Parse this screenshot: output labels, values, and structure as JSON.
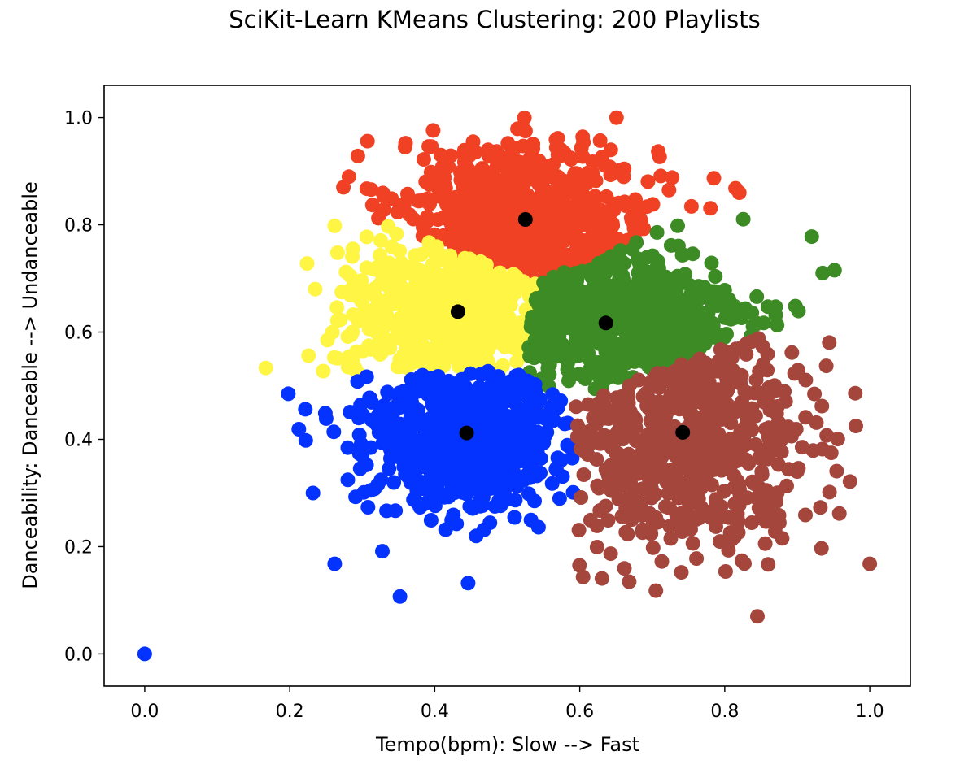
{
  "chart_data": {
    "type": "scatter",
    "title": "SciKit-Learn KMeans Clustering: 200 Playlists",
    "xlabel": "Tempo(bpm): Slow --> Fast",
    "ylabel": "Danceability: Danceable --> Undanceable",
    "xlim": [
      -0.056,
      1.056
    ],
    "ylim": [
      -0.06,
      1.06
    ],
    "xticks": [
      "0.0",
      "0.2",
      "0.4",
      "0.6",
      "0.8",
      "1.0"
    ],
    "yticks": [
      "0.0",
      "0.2",
      "0.4",
      "0.6",
      "0.8",
      "1.0"
    ],
    "grid": false,
    "legend": "none",
    "clusters": [
      {
        "color": "#f04124",
        "center": [
          0.525,
          0.81
        ],
        "spread": [
          0.09,
          0.075
        ]
      },
      {
        "color": "#fef545",
        "center": [
          0.432,
          0.638
        ],
        "spread": [
          0.075,
          0.065
        ]
      },
      {
        "color": "#3c8b24",
        "center": [
          0.636,
          0.617
        ],
        "spread": [
          0.1,
          0.07
        ]
      },
      {
        "color": "#0433ff",
        "center": [
          0.444,
          0.412
        ],
        "spread": [
          0.07,
          0.075
        ]
      },
      {
        "color": "#a5463d",
        "center": [
          0.742,
          0.413
        ],
        "spread": [
          0.09,
          0.1
        ]
      }
    ],
    "outliers": [
      {
        "x": 0.0,
        "y": 0.0,
        "color": "#0433ff"
      },
      {
        "x": 0.198,
        "y": 0.485,
        "color": "#0433ff"
      },
      {
        "x": 0.222,
        "y": 0.398,
        "color": "#0433ff"
      },
      {
        "x": 0.232,
        "y": 0.3,
        "color": "#0433ff"
      },
      {
        "x": 0.262,
        "y": 0.168,
        "color": "#0433ff"
      },
      {
        "x": 0.167,
        "y": 0.533,
        "color": "#fef545"
      },
      {
        "x": 0.226,
        "y": 0.556,
        "color": "#fef545"
      },
      {
        "x": 0.224,
        "y": 0.728,
        "color": "#fef545"
      },
      {
        "x": 0.262,
        "y": 0.798,
        "color": "#fef545"
      },
      {
        "x": 0.274,
        "y": 0.87,
        "color": "#f04124"
      },
      {
        "x": 0.82,
        "y": 0.86,
        "color": "#f04124"
      },
      {
        "x": 0.92,
        "y": 0.778,
        "color": "#3c8b24"
      },
      {
        "x": 0.935,
        "y": 0.71,
        "color": "#3c8b24"
      },
      {
        "x": 1.0,
        "y": 0.168,
        "color": "#a5463d"
      },
      {
        "x": 0.98,
        "y": 0.486,
        "color": "#a5463d"
      },
      {
        "x": 0.845,
        "y": 0.07,
        "color": "#a5463d"
      },
      {
        "x": 0.705,
        "y": 0.118,
        "color": "#a5463d"
      },
      {
        "x": 0.352,
        "y": 0.107,
        "color": "#0433ff"
      },
      {
        "x": 0.446,
        "y": 0.132,
        "color": "#0433ff"
      }
    ],
    "centroids": [
      {
        "x": 0.525,
        "y": 0.81,
        "color": "#000000"
      },
      {
        "x": 0.432,
        "y": 0.638,
        "color": "#000000"
      },
      {
        "x": 0.636,
        "y": 0.617,
        "color": "#000000"
      },
      {
        "x": 0.444,
        "y": 0.412,
        "color": "#000000"
      },
      {
        "x": 0.742,
        "y": 0.413,
        "color": "#000000"
      }
    ]
  }
}
